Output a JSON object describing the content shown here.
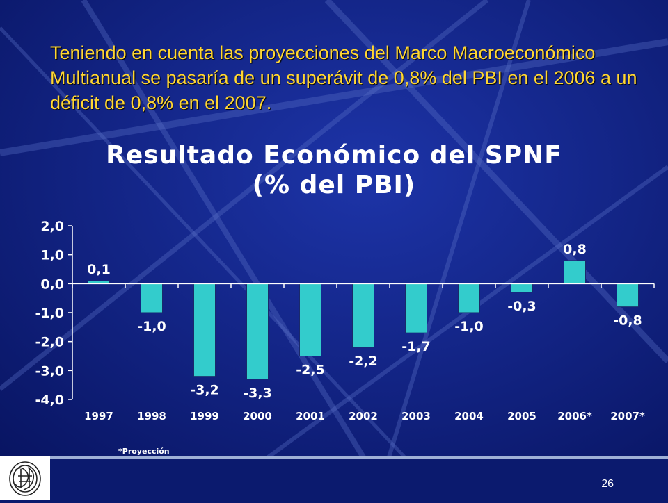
{
  "slide": {
    "headline": "Teniendo en cuenta las proyecciones del Marco Macroeconómico Multianual se pasaría de un superávit de 0,8% del PBI en el 2006 a un déficit de 0,8% en el 2007.",
    "footnote": "*Proyección",
    "page_number": "26",
    "logo_icon": "bcr-seal-logo-icon"
  },
  "colors": {
    "background": "#0b1a6e",
    "headline": "#ffd633",
    "bar": "#33cccc",
    "axis": "#ffffff"
  },
  "chart_data": {
    "type": "bar",
    "title": "Resultado Económico del SPNF",
    "subtitle": "(% del PBI)",
    "categories": [
      "1997",
      "1998",
      "1999",
      "2000",
      "2001",
      "2002",
      "2003",
      "2004",
      "2005",
      "2006*",
      "2007*"
    ],
    "values": [
      0.1,
      -1.0,
      -3.2,
      -3.3,
      -2.5,
      -2.2,
      -1.7,
      -1.0,
      -0.3,
      0.8,
      -0.8
    ],
    "value_labels": [
      "0,1",
      "-1,0",
      "-3,2",
      "-3,3",
      "-2,5",
      "-2,2",
      "-1,7",
      "-1,0",
      "-0,3",
      "0,8",
      "-0,8"
    ],
    "y_ticks": [
      2,
      1,
      0,
      -1,
      -2,
      -3,
      -4
    ],
    "y_tick_labels": [
      "2,0",
      "1,0",
      "0,0",
      "-1,0",
      "-2,0",
      "-3,0",
      "-4,0"
    ],
    "ylim": [
      -4,
      2
    ],
    "grid": false,
    "legend": "none"
  }
}
